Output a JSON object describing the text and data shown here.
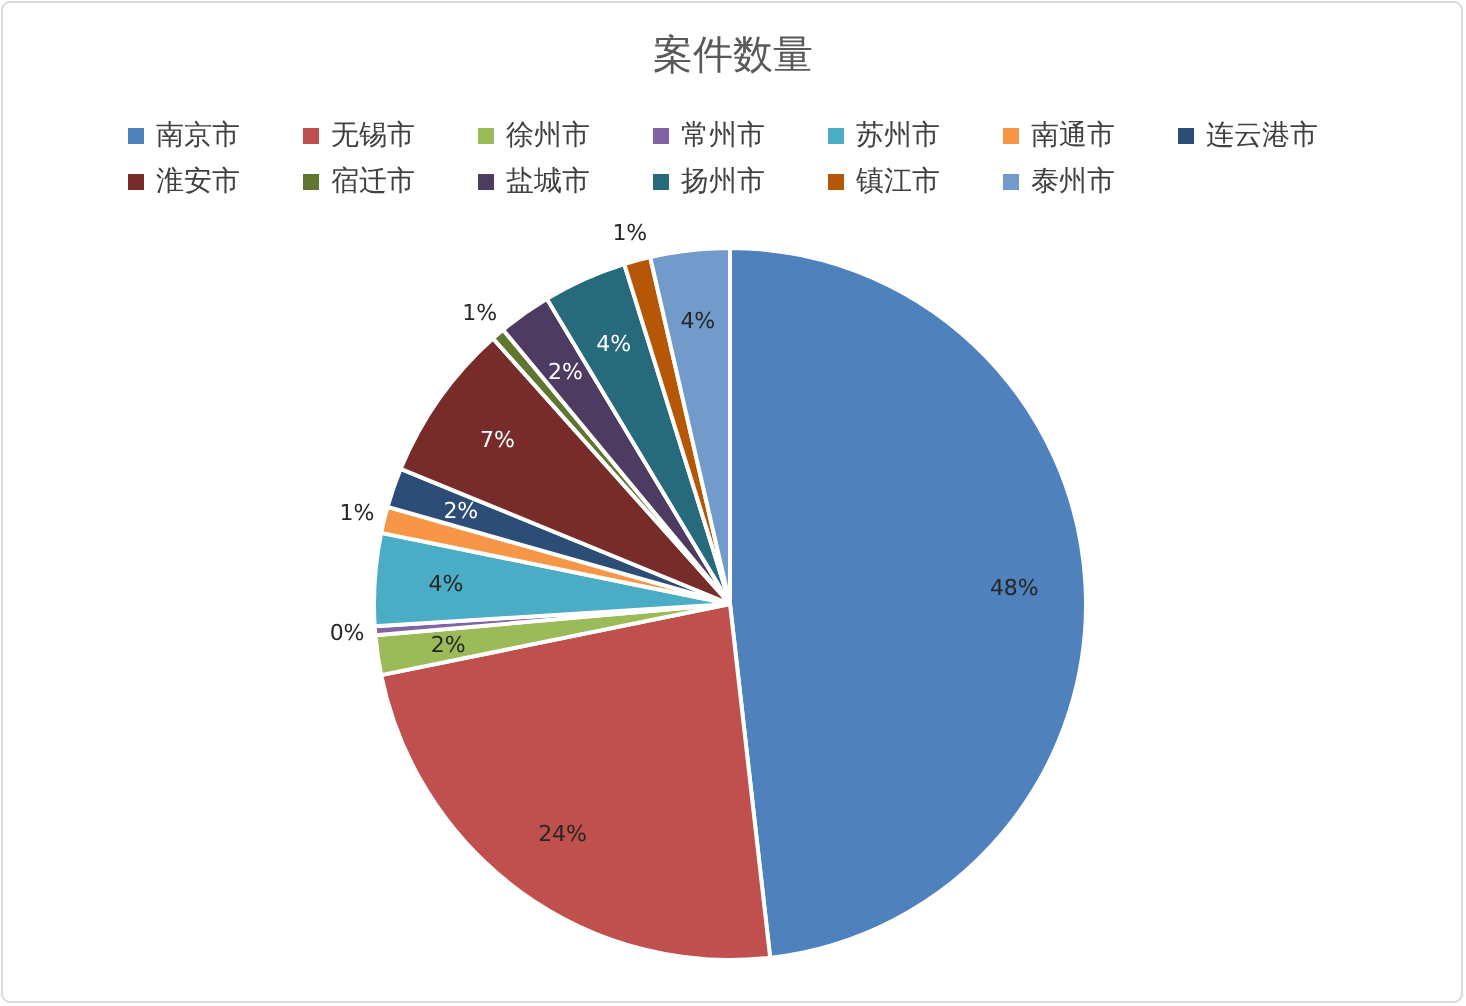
{
  "chart_data": {
    "type": "pie",
    "title": "案件数量",
    "legend": "top",
    "data_labels": false,
    "categories": [
      "南京市",
      "无锡市",
      "徐州市",
      "常州市",
      "苏州市",
      "南通市",
      "连云港市",
      "淮安市",
      "宿迁市",
      "盐城市",
      "扬州市",
      "镇江市",
      "泰州市"
    ],
    "values": [
      48.2,
      23.6,
      1.8,
      0.4,
      4.2,
      1.2,
      1.8,
      7.2,
      0.6,
      2.4,
      3.8,
      1.2,
      3.6
    ],
    "value_labels": [
      "48%",
      "24%",
      "2%",
      "0%",
      "4%",
      "1%",
      "2%",
      "7%",
      "1%",
      "2%",
      "4%",
      "1%",
      "4%"
    ],
    "colors": [
      "#4f81bd",
      "#c0504d",
      "#9bbb59",
      "#8064a2",
      "#4bacc6",
      "#f79646",
      "#2c4d75",
      "#772c2a",
      "#5f7530",
      "#4d3b62",
      "#276a7c",
      "#b65708",
      "#729aca"
    ]
  }
}
